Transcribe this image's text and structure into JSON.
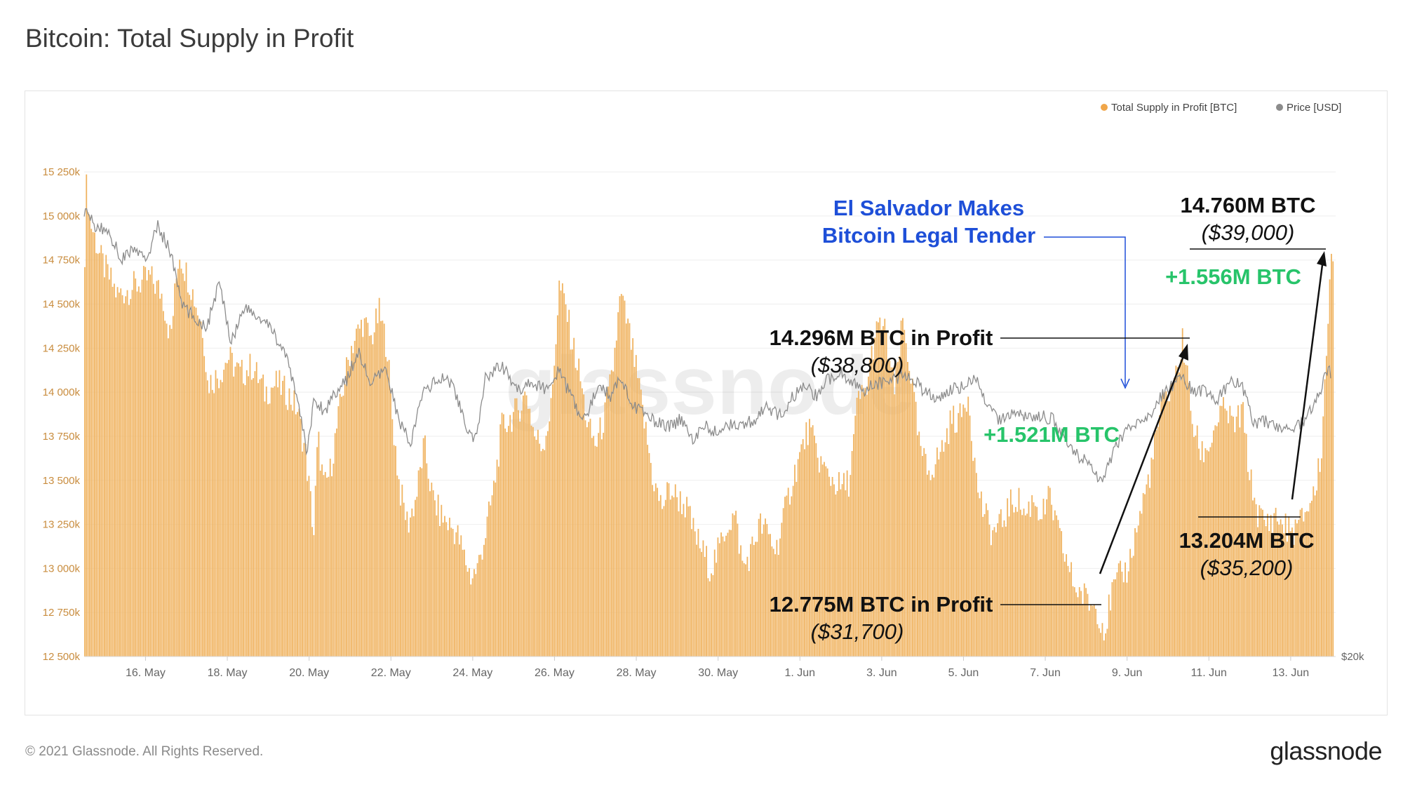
{
  "header": {
    "title": "Bitcoin: Total Supply in Profit"
  },
  "footer": {
    "copyright": "© 2021 Glassnode. All Rights Reserved.",
    "logo": "glassnode"
  },
  "watermark": "glassnode",
  "colors": {
    "supply": "#f0b462",
    "supply_edge": "#e39b3b",
    "price": "#8c8c8c",
    "tick": "#c98d3f",
    "positive": "#27c46a",
    "event": "#1e4fd8",
    "annotation": "#111111"
  },
  "chart_data": {
    "type": "bar",
    "title": "Bitcoin: Total Supply in Profit",
    "legend_position": "top-right",
    "grid": true,
    "y_left": {
      "ylim": [
        12500,
        15350
      ],
      "ticks": [
        12500,
        12750,
        13000,
        13250,
        13500,
        13750,
        14000,
        14250,
        14500,
        14750,
        15000,
        15250
      ],
      "tick_labels": [
        "12 500k",
        "12 750k",
        "13 000k",
        "13 250k",
        "13 500k",
        "13 750k",
        "14 000k",
        "14 250k",
        "14 500k",
        "14 750k",
        "15 000k",
        "15 250k"
      ]
    },
    "y_right": {
      "tick_labels": [
        "$20k"
      ]
    },
    "x": {
      "range_days": [
        14.0,
        44.6
      ],
      "ticks": [
        {
          "day": 15.5,
          "label": "16. May"
        },
        {
          "day": 17.5,
          "label": "18. May"
        },
        {
          "day": 19.5,
          "label": "20. May"
        },
        {
          "day": 21.5,
          "label": "22. May"
        },
        {
          "day": 23.5,
          "label": "24. May"
        },
        {
          "day": 25.5,
          "label": "26. May"
        },
        {
          "day": 27.5,
          "label": "28. May"
        },
        {
          "day": 29.5,
          "label": "30. May"
        },
        {
          "day": 31.5,
          "label": "1. Jun"
        },
        {
          "day": 33.5,
          "label": "3. Jun"
        },
        {
          "day": 35.5,
          "label": "5. Jun"
        },
        {
          "day": 37.5,
          "label": "7. Jun"
        },
        {
          "day": 39.5,
          "label": "9. Jun"
        },
        {
          "day": 41.5,
          "label": "11. Jun"
        },
        {
          "day": 43.5,
          "label": "13. Jun"
        }
      ]
    },
    "series": [
      {
        "name": "Total Supply in Profit [BTC]",
        "kind": "bar",
        "unit": "thousand BTC",
        "points": [
          [
            14.0,
            14800
          ],
          [
            14.05,
            15250
          ],
          [
            14.1,
            15000
          ],
          [
            14.4,
            14750
          ],
          [
            14.8,
            14550
          ],
          [
            15.2,
            14600
          ],
          [
            15.6,
            14650
          ],
          [
            15.9,
            14550
          ],
          [
            16.1,
            14300
          ],
          [
            16.3,
            14800
          ],
          [
            16.6,
            14600
          ],
          [
            16.9,
            14350
          ],
          [
            17.0,
            14050
          ],
          [
            17.3,
            14100
          ],
          [
            17.5,
            14200
          ],
          [
            17.8,
            14100
          ],
          [
            18.1,
            14150
          ],
          [
            18.4,
            14000
          ],
          [
            18.7,
            14050
          ],
          [
            19.0,
            13980
          ],
          [
            19.2,
            13900
          ],
          [
            19.4,
            13650
          ],
          [
            19.6,
            13200
          ],
          [
            19.7,
            13750
          ],
          [
            19.85,
            13450
          ],
          [
            20.0,
            13550
          ],
          [
            20.3,
            14000
          ],
          [
            20.5,
            14250
          ],
          [
            20.8,
            14400
          ],
          [
            21.0,
            14300
          ],
          [
            21.2,
            14450
          ],
          [
            21.4,
            14250
          ],
          [
            21.5,
            13900
          ],
          [
            21.7,
            13450
          ],
          [
            21.9,
            13250
          ],
          [
            22.1,
            13400
          ],
          [
            22.3,
            13700
          ],
          [
            22.5,
            13400
          ],
          [
            22.7,
            13300
          ],
          [
            22.9,
            13250
          ],
          [
            23.1,
            13200
          ],
          [
            23.3,
            13050
          ],
          [
            23.45,
            12950
          ],
          [
            23.6,
            13000
          ],
          [
            23.8,
            13200
          ],
          [
            24.0,
            13450
          ],
          [
            24.2,
            13800
          ],
          [
            24.4,
            13850
          ],
          [
            24.6,
            13900
          ],
          [
            24.8,
            14000
          ],
          [
            25.0,
            13750
          ],
          [
            25.2,
            13700
          ],
          [
            25.4,
            13900
          ],
          [
            25.6,
            14600
          ],
          [
            25.75,
            14500
          ],
          [
            25.9,
            14300
          ],
          [
            26.1,
            14100
          ],
          [
            26.3,
            13800
          ],
          [
            26.5,
            13700
          ],
          [
            26.7,
            13850
          ],
          [
            26.9,
            14100
          ],
          [
            27.1,
            14550
          ],
          [
            27.3,
            14350
          ],
          [
            27.5,
            14100
          ],
          [
            27.7,
            13800
          ],
          [
            27.9,
            13500
          ],
          [
            28.1,
            13350
          ],
          [
            28.3,
            13450
          ],
          [
            28.5,
            13400
          ],
          [
            28.7,
            13350
          ],
          [
            28.9,
            13200
          ],
          [
            29.1,
            13100
          ],
          [
            29.3,
            13000
          ],
          [
            29.5,
            13100
          ],
          [
            29.7,
            13250
          ],
          [
            29.9,
            13300
          ],
          [
            30.1,
            13000
          ],
          [
            30.3,
            13100
          ],
          [
            30.5,
            13250
          ],
          [
            30.7,
            13200
          ],
          [
            30.9,
            13100
          ],
          [
            31.1,
            13300
          ],
          [
            31.3,
            13500
          ],
          [
            31.5,
            13650
          ],
          [
            31.7,
            13800
          ],
          [
            31.9,
            13650
          ],
          [
            32.1,
            13550
          ],
          [
            32.3,
            13500
          ],
          [
            32.5,
            13450
          ],
          [
            32.7,
            13500
          ],
          [
            32.9,
            13950
          ],
          [
            33.1,
            14000
          ],
          [
            33.3,
            14300
          ],
          [
            33.5,
            14400
          ],
          [
            33.6,
            14300
          ],
          [
            33.8,
            14000
          ],
          [
            34.0,
            14400
          ],
          [
            34.2,
            14100
          ],
          [
            34.4,
            13700
          ],
          [
            34.6,
            13550
          ],
          [
            34.8,
            13600
          ],
          [
            35.0,
            13700
          ],
          [
            35.2,
            13850
          ],
          [
            35.4,
            13850
          ],
          [
            35.6,
            14000
          ],
          [
            35.8,
            13500
          ],
          [
            36.0,
            13300
          ],
          [
            36.2,
            13200
          ],
          [
            36.4,
            13250
          ],
          [
            36.6,
            13350
          ],
          [
            36.8,
            13400
          ],
          [
            37.0,
            13300
          ],
          [
            37.2,
            13400
          ],
          [
            37.4,
            13300
          ],
          [
            37.6,
            13400
          ],
          [
            37.8,
            13200
          ],
          [
            38.0,
            13050
          ],
          [
            38.2,
            12900
          ],
          [
            38.4,
            12850
          ],
          [
            38.6,
            12800
          ],
          [
            38.75,
            12775
          ],
          [
            38.95,
            12650
          ],
          [
            39.1,
            12850
          ],
          [
            39.3,
            12950
          ],
          [
            39.5,
            13000
          ],
          [
            39.7,
            13200
          ],
          [
            39.9,
            13400
          ],
          [
            40.1,
            13600
          ],
          [
            40.3,
            13900
          ],
          [
            40.5,
            14000
          ],
          [
            40.7,
            14100
          ],
          [
            40.85,
            14296
          ],
          [
            40.95,
            14100
          ],
          [
            41.1,
            13800
          ],
          [
            41.3,
            13650
          ],
          [
            41.5,
            13700
          ],
          [
            41.7,
            13850
          ],
          [
            41.9,
            13900
          ],
          [
            42.1,
            13800
          ],
          [
            42.3,
            13900
          ],
          [
            42.5,
            13500
          ],
          [
            42.7,
            13300
          ],
          [
            42.9,
            13250
          ],
          [
            43.1,
            13300
          ],
          [
            43.3,
            13250
          ],
          [
            43.5,
            13204
          ],
          [
            43.7,
            13250
          ],
          [
            43.9,
            13350
          ],
          [
            44.1,
            13450
          ],
          [
            44.25,
            13700
          ],
          [
            44.4,
            14450
          ],
          [
            44.5,
            14760
          ]
        ]
      },
      {
        "name": "Price [USD]",
        "kind": "line",
        "axis": "right",
        "points": [
          [
            14.0,
            49800
          ],
          [
            14.3,
            48600
          ],
          [
            14.6,
            48400
          ],
          [
            14.9,
            46500
          ],
          [
            15.2,
            47200
          ],
          [
            15.5,
            46400
          ],
          [
            15.8,
            48700
          ],
          [
            16.1,
            47100
          ],
          [
            16.4,
            43400
          ],
          [
            16.7,
            42600
          ],
          [
            17.0,
            42000
          ],
          [
            17.3,
            44900
          ],
          [
            17.6,
            41000
          ],
          [
            17.9,
            43300
          ],
          [
            18.2,
            42700
          ],
          [
            18.6,
            41800
          ],
          [
            18.9,
            40200
          ],
          [
            19.2,
            37500
          ],
          [
            19.45,
            33500
          ],
          [
            19.6,
            37000
          ],
          [
            19.9,
            36400
          ],
          [
            20.1,
            37600
          ],
          [
            20.4,
            38300
          ],
          [
            20.7,
            40400
          ],
          [
            21.0,
            38200
          ],
          [
            21.4,
            39100
          ],
          [
            21.7,
            35600
          ],
          [
            22.0,
            34300
          ],
          [
            22.3,
            37800
          ],
          [
            22.7,
            38500
          ],
          [
            23.0,
            38300
          ],
          [
            23.4,
            34700
          ],
          [
            23.6,
            34500
          ],
          [
            23.8,
            38600
          ],
          [
            24.2,
            39500
          ],
          [
            24.6,
            37700
          ],
          [
            24.9,
            38400
          ],
          [
            25.2,
            37800
          ],
          [
            25.6,
            39000
          ],
          [
            25.9,
            37400
          ],
          [
            26.2,
            35600
          ],
          [
            26.6,
            38300
          ],
          [
            26.9,
            37300
          ],
          [
            27.1,
            38900
          ],
          [
            27.4,
            36800
          ],
          [
            27.7,
            36100
          ],
          [
            28.0,
            35600
          ],
          [
            28.3,
            35300
          ],
          [
            28.6,
            35900
          ],
          [
            28.9,
            34500
          ],
          [
            29.2,
            35300
          ],
          [
            29.5,
            34900
          ],
          [
            29.8,
            35600
          ],
          [
            30.1,
            35300
          ],
          [
            30.4,
            35900
          ],
          [
            30.7,
            36600
          ],
          [
            31.0,
            36000
          ],
          [
            31.3,
            37200
          ],
          [
            31.6,
            38000
          ],
          [
            31.9,
            37400
          ],
          [
            32.2,
            38500
          ],
          [
            32.5,
            39000
          ],
          [
            32.8,
            38300
          ],
          [
            33.1,
            37800
          ],
          [
            33.4,
            38200
          ],
          [
            33.7,
            38300
          ],
          [
            34.0,
            38800
          ],
          [
            34.3,
            38500
          ],
          [
            34.6,
            37500
          ],
          [
            34.9,
            37300
          ],
          [
            35.2,
            37800
          ],
          [
            35.5,
            38000
          ],
          [
            35.8,
            38500
          ],
          [
            36.1,
            36500
          ],
          [
            36.4,
            35700
          ],
          [
            36.7,
            36400
          ],
          [
            37.0,
            36000
          ],
          [
            37.4,
            36100
          ],
          [
            37.7,
            35800
          ],
          [
            38.0,
            34500
          ],
          [
            38.3,
            33300
          ],
          [
            38.6,
            32800
          ],
          [
            38.85,
            31700
          ],
          [
            39.1,
            33200
          ],
          [
            39.4,
            34800
          ],
          [
            39.7,
            35500
          ],
          [
            40.0,
            35800
          ],
          [
            40.3,
            37300
          ],
          [
            40.6,
            38000
          ],
          [
            40.85,
            38800
          ],
          [
            41.1,
            37600
          ],
          [
            41.4,
            37700
          ],
          [
            41.7,
            37200
          ],
          [
            42.0,
            38300
          ],
          [
            42.3,
            38200
          ],
          [
            42.6,
            35500
          ],
          [
            42.9,
            35700
          ],
          [
            43.2,
            35300
          ],
          [
            43.5,
            35200
          ],
          [
            43.8,
            35700
          ],
          [
            44.1,
            36800
          ],
          [
            44.35,
            38800
          ],
          [
            44.5,
            39000
          ]
        ]
      }
    ],
    "annotations": [
      {
        "id": "event",
        "lines": [
          "El Salvador Makes",
          "Bitcoin Legal Tender"
        ]
      },
      {
        "id": "peak1",
        "label": "14.296M BTC in Profit",
        "price": "($38,800)"
      },
      {
        "id": "low1",
        "label": "12.775M BTC in Profit",
        "price": "($31,700)"
      },
      {
        "id": "gain1",
        "label": "+1.521M BTC"
      },
      {
        "id": "low2",
        "label": "13.204M BTC",
        "price": "($35,200)"
      },
      {
        "id": "gain2",
        "label": "+1.556M BTC"
      },
      {
        "id": "peak2",
        "label": "14.760M BTC",
        "price": "($39,000)"
      }
    ],
    "legend": [
      {
        "label": "Total Supply in Profit [BTC]",
        "color": "#f0a64a"
      },
      {
        "label": "Price [USD]",
        "color": "#8c8c8c"
      }
    ]
  }
}
